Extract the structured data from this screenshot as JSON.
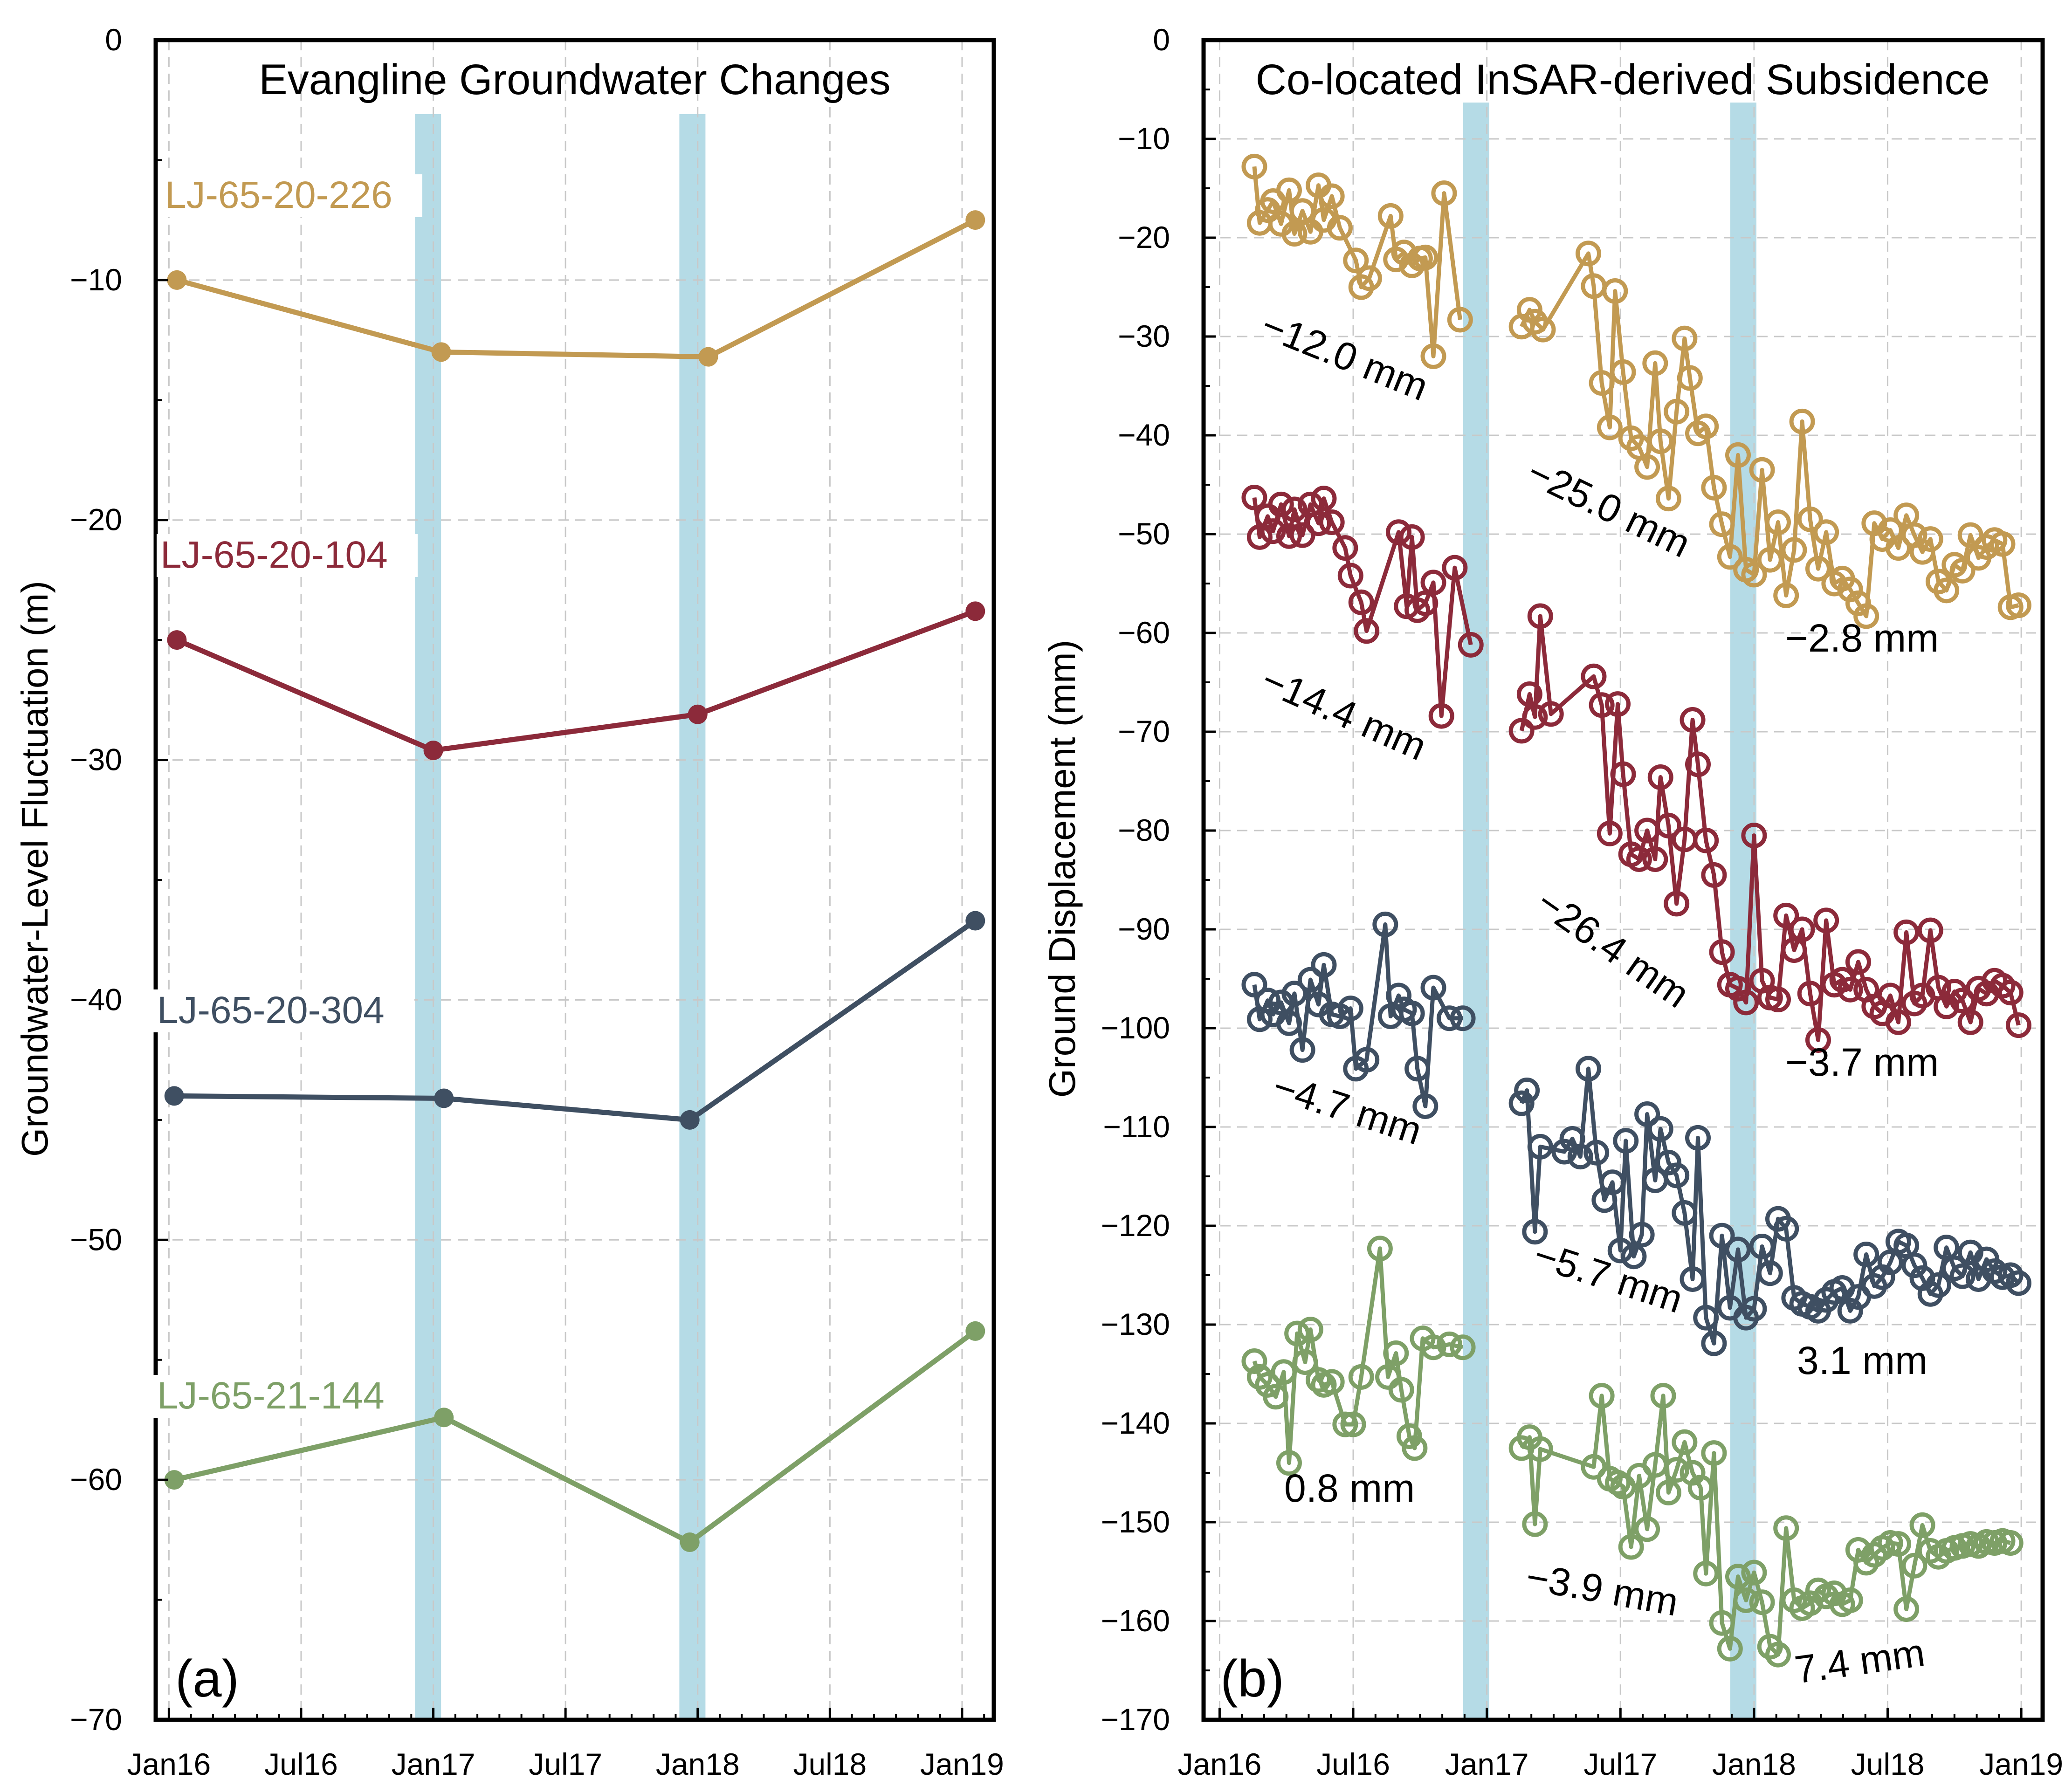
{
  "chart_data": [
    {
      "type": "line",
      "panel_label": "(a)",
      "title": "Evangline Groundwater Changes",
      "xlabel": "",
      "ylabel": "Groundwater-Level Fluctuation (m)",
      "ylim": [
        -70,
        0
      ],
      "yticks": [
        0,
        -10,
        -20,
        -30,
        -40,
        -50,
        -60,
        -70
      ],
      "xlim": [
        2015.95,
        2019.12
      ],
      "xtick_positions": [
        2016.0,
        2016.5,
        2017.0,
        2017.5,
        2018.0,
        2018.5,
        2019.0
      ],
      "xtick_labels": [
        "Jan16",
        "Jul16",
        "Jan17",
        "Jul17",
        "Jan18",
        "Jul18",
        "Jan19"
      ],
      "grid": true,
      "shaded_periods": [
        2016.98,
        2017.98
      ],
      "series": [
        {
          "name": "LJ-65-20-226",
          "color": "#c29a52",
          "x": [
            2016.03,
            2017.03,
            2018.04,
            2019.05
          ],
          "values": [
            -10.0,
            -13.0,
            -13.2,
            -7.5
          ]
        },
        {
          "name": "LJ-65-20-104",
          "color": "#8c2a3a",
          "x": [
            2016.03,
            2017.0,
            2018.0,
            2019.05
          ],
          "values": [
            -25.0,
            -29.6,
            -28.1,
            -23.8
          ]
        },
        {
          "name": "LJ-65-20-304",
          "color": "#3f4f62",
          "x": [
            2016.02,
            2017.04,
            2017.97,
            2019.05
          ],
          "values": [
            -44.0,
            -44.1,
            -45.0,
            -36.7
          ]
        },
        {
          "name": "LJ-65-21-144",
          "color": "#7ea067",
          "x": [
            2016.02,
            2017.04,
            2017.97,
            2019.05
          ],
          "values": [
            -60.0,
            -57.4,
            -62.6,
            -53.8
          ]
        }
      ]
    },
    {
      "type": "line",
      "panel_label": "(b)",
      "title": "Co-located InSAR-derived Subsidence",
      "xlabel": "",
      "ylabel": "Ground Displacement (mm)",
      "ylim": [
        -170,
        0
      ],
      "yticks": [
        0,
        -10,
        -20,
        -30,
        -40,
        -50,
        -60,
        -70,
        -80,
        -90,
        -100,
        -110,
        -120,
        -130,
        -140,
        -150,
        -160,
        -170
      ],
      "xlim": [
        2015.94,
        2019.08
      ],
      "xtick_positions": [
        2016.0,
        2016.5,
        2017.0,
        2017.5,
        2018.0,
        2018.5,
        2019.0
      ],
      "xtick_labels": [
        "Jan16",
        "Jul16",
        "Jan17",
        "Jul17",
        "Jan18",
        "Jul18",
        "Jan19"
      ],
      "grid": true,
      "shaded_periods": [
        2016.96,
        2017.96
      ],
      "series": [
        {
          "name": "LJ-65-20-226",
          "color": "#c29a52",
          "x": [
            2016.13,
            2016.15,
            2016.18,
            2016.2,
            2016.23,
            2016.26,
            2016.28,
            2016.31,
            2016.34,
            2016.37,
            2016.39,
            2016.42,
            2016.45,
            2016.51,
            2016.53,
            2016.56,
            2016.64,
            2016.66,
            2016.69,
            2016.72,
            2016.75,
            2016.77,
            2016.8,
            2016.84,
            2016.9
          ],
          "values": [
            -12.8,
            -18.5,
            -17.2,
            -16.3,
            -18.6,
            -15.2,
            -19.6,
            -17.3,
            -19.4,
            -14.7,
            -18.2,
            -15.8,
            -19.0,
            -22.3,
            -25.0,
            -24.1,
            -17.8,
            -22.2,
            -21.5,
            -22.8,
            -22.1,
            -22.0,
            -32.0,
            -15.5,
            -28.3
          ],
          "rate_label": "−12.0 mm"
        },
        {
          "name": "LJ-65-20-226",
          "color": "#c29a52",
          "x": [
            2017.13,
            2017.16,
            2017.18,
            2017.21,
            2017.38,
            2017.4,
            2017.43,
            2017.46,
            2017.48,
            2017.51,
            2017.54,
            2017.57,
            2017.6,
            2017.63,
            2017.65,
            2017.68,
            2017.71,
            2017.74,
            2017.76,
            2017.79,
            2017.82,
            2017.85,
            2017.88,
            2017.91,
            2017.94,
            2017.97,
            2018.0,
            2018.03,
            2018.06,
            2018.09,
            2018.12,
            2018.15,
            2018.18,
            2018.21,
            2018.24,
            2018.27,
            2018.3,
            2018.33,
            2018.36,
            2018.39,
            2018.42,
            2018.45,
            2018.48,
            2018.51,
            2018.54,
            2018.57,
            2018.6,
            2018.63,
            2018.66,
            2018.69,
            2018.72,
            2018.75,
            2018.78,
            2018.81,
            2018.84,
            2018.87,
            2018.9,
            2018.93,
            2018.96,
            2018.99
          ],
          "values": [
            -29.0,
            -27.3,
            -28.5,
            -29.3,
            -21.6,
            -24.9,
            -34.7,
            -39.2,
            -25.4,
            -33.6,
            -40.3,
            -41.2,
            -43.2,
            -32.7,
            -40.6,
            -46.4,
            -37.6,
            -30.2,
            -34.2,
            -39.8,
            -39.1,
            -45.3,
            -49.0,
            -52.3,
            -42.0,
            -53.6,
            -54.1,
            -43.5,
            -52.6,
            -48.8,
            -56.2,
            -51.6,
            -38.6,
            -48.5,
            -53.5,
            -49.8,
            -55.0,
            -54.5,
            -55.6,
            -57.0,
            -58.3,
            -48.9,
            -50.5,
            -49.6,
            -51.4,
            -48.1,
            -50.1,
            -51.8,
            -50.5,
            -54.8,
            -55.7,
            -53.1,
            -53.7,
            -50.1,
            -52.4,
            -51.3,
            -50.6,
            -51.0,
            -57.4,
            -57.2
          ],
          "rate_label": "−25.0 mm"
        },
        {
          "name": "LJ-65-20-104",
          "color": "#8c2a3a",
          "x": [
            2016.13,
            2016.15,
            2016.18,
            2016.2,
            2016.23,
            2016.26,
            2016.28,
            2016.31,
            2016.34,
            2016.37,
            2016.39,
            2016.42,
            2016.47,
            2016.49,
            2016.53,
            2016.55,
            2016.67,
            2016.7,
            2016.72,
            2016.74,
            2016.77,
            2016.8,
            2016.83,
            2016.88,
            2016.94
          ],
          "values": [
            -46.3,
            -50.3,
            -48.2,
            -49.7,
            -47.0,
            -50.2,
            -47.5,
            -50.1,
            -47.0,
            -48.9,
            -46.4,
            -48.8,
            -51.4,
            -54.2,
            -56.9,
            -59.8,
            -49.8,
            -57.3,
            -50.3,
            -57.7,
            -57.0,
            -54.9,
            -68.4,
            -53.4,
            -61.2
          ],
          "rate_label": "−14.4 mm"
        },
        {
          "name": "LJ-65-20-104",
          "color": "#8c2a3a",
          "x": [
            2017.13,
            2017.16,
            2017.18,
            2017.2,
            2017.24,
            2017.4,
            2017.43,
            2017.46,
            2017.49,
            2017.51,
            2017.54,
            2017.57,
            2017.6,
            2017.63,
            2017.65,
            2017.68,
            2017.71,
            2017.74,
            2017.77,
            2017.79,
            2017.82,
            2017.85,
            2017.88,
            2017.91,
            2017.94,
            2017.97,
            2018.0,
            2018.03,
            2018.06,
            2018.09,
            2018.12,
            2018.15,
            2018.18,
            2018.21,
            2018.24,
            2018.27,
            2018.3,
            2018.33,
            2018.36,
            2018.39,
            2018.42,
            2018.45,
            2018.48,
            2018.51,
            2018.54,
            2018.57,
            2018.6,
            2018.63,
            2018.66,
            2018.69,
            2018.72,
            2018.75,
            2018.78,
            2018.81,
            2018.84,
            2018.87,
            2018.9,
            2018.93,
            2018.96,
            2018.99
          ],
          "values": [
            -69.9,
            -66.2,
            -68.5,
            -58.3,
            -68.2,
            -64.4,
            -67.3,
            -80.3,
            -67.2,
            -74.3,
            -82.4,
            -82.9,
            -80.0,
            -82.9,
            -74.6,
            -79.5,
            -87.4,
            -80.9,
            -68.8,
            -73.3,
            -81.0,
            -84.5,
            -92.3,
            -95.6,
            -96.0,
            -97.4,
            -80.5,
            -95.2,
            -96.9,
            -97.1,
            -88.6,
            -92.1,
            -90.0,
            -96.5,
            -101.2,
            -89.1,
            -95.6,
            -95.1,
            -96.1,
            -93.3,
            -96.1,
            -97.8,
            -98.5,
            -96.7,
            -99.4,
            -90.3,
            -97.5,
            -96.7,
            -90.1,
            -95.9,
            -97.8,
            -96.3,
            -97.2,
            -99.4,
            -96.0,
            -96.5,
            -95.2,
            -95.7,
            -96.4,
            -99.7
          ],
          "rate_label": "−26.4 mm"
        },
        {
          "name": "LJ-65-20-304",
          "color": "#3f4f62",
          "x": [
            2016.13,
            2016.15,
            2016.18,
            2016.2,
            2016.23,
            2016.26,
            2016.28,
            2016.31,
            2016.34,
            2016.37,
            2016.39,
            2016.42,
            2016.45,
            2016.49,
            2016.51,
            2016.55,
            2016.62,
            2016.64,
            2016.67,
            2016.69,
            2016.72,
            2016.74,
            2016.77,
            2016.8,
            2016.86,
            2016.91
          ],
          "values": [
            -95.6,
            -99.1,
            -97.2,
            -98.6,
            -97.4,
            -99.5,
            -96.5,
            -102.2,
            -95.1,
            -97.6,
            -93.6,
            -98.6,
            -98.8,
            -98.0,
            -104.1,
            -103.2,
            -89.5,
            -98.8,
            -96.7,
            -98.1,
            -98.5,
            -104.1,
            -107.9,
            -95.9,
            -99.0,
            -99.0
          ],
          "rate_label": "−4.7 mm"
        },
        {
          "name": "LJ-65-20-304",
          "color": "#3f4f62",
          "x": [
            2017.13,
            2017.15,
            2017.18,
            2017.2,
            2017.29,
            2017.32,
            2017.35,
            2017.38,
            2017.41,
            2017.44,
            2017.47,
            2017.5,
            2017.52,
            2017.55,
            2017.58,
            2017.6,
            2017.63,
            2017.65,
            2017.68,
            2017.71,
            2017.74,
            2017.77,
            2017.79,
            2017.82,
            2017.85,
            2017.88,
            2017.91,
            2017.94,
            2017.97,
            2018.0,
            2018.03,
            2018.06,
            2018.09,
            2018.12,
            2018.15,
            2018.18,
            2018.21,
            2018.24,
            2018.27,
            2018.3,
            2018.33,
            2018.36,
            2018.39,
            2018.42,
            2018.45,
            2018.48,
            2018.51,
            2018.54,
            2018.57,
            2018.6,
            2018.63,
            2018.66,
            2018.69,
            2018.72,
            2018.75,
            2018.78,
            2018.81,
            2018.84,
            2018.87,
            2018.9,
            2018.93,
            2018.96,
            2018.99
          ],
          "values": [
            -107.6,
            -106.3,
            -120.6,
            -112.0,
            -112.5,
            -111.2,
            -113.0,
            -104.1,
            -112.6,
            -117.4,
            -115.6,
            -122.5,
            -111.4,
            -123.1,
            -120.9,
            -108.7,
            -115.4,
            -110.2,
            -113.6,
            -114.9,
            -118.7,
            -125.4,
            -111.1,
            -129.3,
            -131.9,
            -121.0,
            -128.3,
            -122.4,
            -129.3,
            -128.4,
            -122.1,
            -124.8,
            -119.3,
            -120.3,
            -127.3,
            -127.9,
            -128.2,
            -128.6,
            -127.5,
            -126.7,
            -126.3,
            -128.6,
            -127.2,
            -122.9,
            -126.1,
            -125.2,
            -123.7,
            -121.6,
            -122.0,
            -124.0,
            -125.3,
            -126.9,
            -126.0,
            -122.2,
            -124.3,
            -125.1,
            -122.7,
            -125.4,
            -123.4,
            -124.6,
            -125.2,
            -125.0,
            -125.8
          ],
          "rate_label": "−5.7 mm"
        },
        {
          "name": "LJ-65-21-144",
          "color": "#7ea067",
          "x": [
            2016.13,
            2016.15,
            2016.18,
            2016.21,
            2016.24,
            2016.26,
            2016.29,
            2016.32,
            2016.34,
            2016.37,
            2016.39,
            2016.42,
            2016.47,
            2016.5,
            2016.53,
            2016.6,
            2016.63,
            2016.66,
            2016.68,
            2016.71,
            2016.73,
            2016.76,
            2016.8,
            2016.86,
            2016.91
          ],
          "values": [
            -133.7,
            -135.3,
            -136.1,
            -137.3,
            -134.8,
            -144.0,
            -130.9,
            -133.8,
            -130.5,
            -135.6,
            -136.1,
            -135.8,
            -140.1,
            -140.1,
            -135.3,
            -122.3,
            -135.3,
            -132.9,
            -136.6,
            -141.3,
            -142.5,
            -131.4,
            -132.3,
            -132.0,
            -132.3
          ],
          "rate_label": "0.8 mm"
        },
        {
          "name": "LJ-65-21-144",
          "color": "#7ea067",
          "x": [
            2017.13,
            2017.16,
            2017.18,
            2017.2,
            2017.4,
            2017.43,
            2017.46,
            2017.49,
            2017.51,
            2017.54,
            2017.57,
            2017.6,
            2017.63,
            2017.66,
            2017.68,
            2017.71,
            2017.74,
            2017.77,
            2017.8,
            2017.82,
            2017.85,
            2017.88,
            2017.91,
            2017.94,
            2017.97,
            2018.0,
            2018.03,
            2018.06,
            2018.09,
            2018.12,
            2018.15,
            2018.18,
            2018.21,
            2018.24,
            2018.27,
            2018.3,
            2018.33,
            2018.36,
            2018.39,
            2018.42,
            2018.45,
            2018.48,
            2018.51,
            2018.54,
            2018.57,
            2018.6,
            2018.63,
            2018.66,
            2018.69,
            2018.72,
            2018.75,
            2018.78,
            2018.81,
            2018.84,
            2018.87,
            2018.9,
            2018.93,
            2018.96
          ],
          "values": [
            -142.5,
            -141.4,
            -150.2,
            -142.6,
            -144.4,
            -137.2,
            -145.6,
            -146.0,
            -146.4,
            -152.5,
            -145.3,
            -150.7,
            -144.2,
            -137.2,
            -147.0,
            -144.7,
            -141.9,
            -145.0,
            -146.5,
            -155.2,
            -143.0,
            -160.2,
            -162.8,
            -155.5,
            -157.9,
            -155.1,
            -158.1,
            -162.6,
            -163.4,
            -150.6,
            -157.9,
            -158.7,
            -158.2,
            -156.9,
            -157.5,
            -157.2,
            -158.3,
            -157.9,
            -152.8,
            -154.1,
            -153.3,
            -152.6,
            -152.1,
            -152.2,
            -158.8,
            -154.4,
            -150.3,
            -152.9,
            -153.5,
            -152.9,
            -152.6,
            -152.4,
            -152.2,
            -152.4,
            -152.0,
            -152.1,
            -151.9,
            -152.1
          ],
          "rate_label": "−3.9 mm"
        }
      ],
      "post_rates": {
        "LJ-65-20-226": "−2.8 mm",
        "LJ-65-20-104": "−3.7 mm",
        "LJ-65-20-304": "3.1 mm",
        "LJ-65-21-144": "7.4 mm"
      }
    }
  ]
}
